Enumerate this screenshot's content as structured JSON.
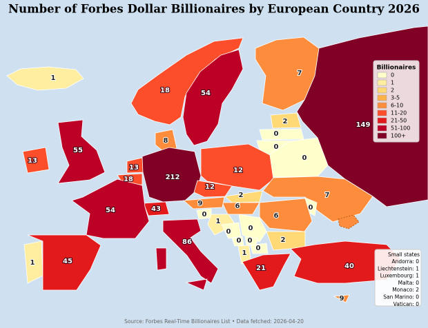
{
  "title": "Number of Forbes Dollar Billionaires by European Country 2026",
  "regions": [
    {
      "value": 1,
      "color": "#ffeda0"
    },
    {
      "value": 18,
      "color": "#fc4e2a"
    },
    {
      "value": 54,
      "color": "#bd0026"
    },
    {
      "value": 7,
      "color": "#fd8d3c"
    },
    {
      "value": 149,
      "color": "#800026"
    },
    {
      "value": 2,
      "color": "#fed976"
    },
    {
      "value": 0,
      "color": "#ffffcc"
    },
    {
      "value": 0,
      "color": "#ffffcc"
    },
    {
      "value": 0,
      "color": "#ffffcc"
    },
    {
      "value": 8,
      "color": "#fd8d3c"
    },
    {
      "value": 55,
      "color": "#bd0026"
    },
    {
      "value": 13,
      "color": "#fc4e2a"
    },
    {
      "value": 13,
      "color": "#fc4e2a"
    },
    {
      "value": 18,
      "color": "#fc4e2a"
    },
    {
      "value": 212,
      "color": "#800026"
    },
    {
      "value": 12,
      "color": "#fc4e2a"
    },
    {
      "value": 12,
      "color": "#fc4e2a"
    },
    {
      "value": 2,
      "color": "#fed976"
    },
    {
      "value": 7,
      "color": "#fd8d3c"
    },
    {
      "value": 6,
      "color": "#fd8d3c"
    },
    {
      "value": 9,
      "color": "#fd8d3c"
    },
    {
      "value": 43,
      "color": "#e31a1c"
    },
    {
      "value": 0,
      "color": "#ffffcc"
    },
    {
      "value": 6,
      "color": "#fd8d3c"
    },
    {
      "value": 54,
      "color": "#bd0026"
    },
    {
      "value": 0,
      "color": "#ffffcc"
    },
    {
      "value": 1,
      "color": "#ffeda0"
    },
    {
      "value": 0,
      "color": "#ffffcc"
    },
    {
      "value": 0,
      "color": "#ffffcc"
    },
    {
      "value": 0,
      "color": "#ffffcc"
    },
    {
      "value": 0,
      "color": "#ffffcc"
    },
    {
      "value": 0,
      "color": "#ffffcc"
    },
    {
      "value": 1,
      "color": "#ffeda0"
    },
    {
      "value": 2,
      "color": "#fed976"
    },
    {
      "value": 86,
      "color": "#bd0026"
    },
    {
      "value": 1,
      "color": "#ffeda0"
    },
    {
      "value": 45,
      "color": "#e31a1c"
    },
    {
      "value": 21,
      "color": "#e31a1c"
    },
    {
      "value": 40,
      "color": "#e31a1c"
    },
    {
      "value": 9,
      "color": "#fd8d3c"
    }
  ],
  "legend": {
    "title": "Billionaires",
    "items": [
      {
        "label": "0",
        "color": "#ffffcc"
      },
      {
        "label": "1",
        "color": "#ffeda0"
      },
      {
        "label": "2",
        "color": "#fed976"
      },
      {
        "label": "3-5",
        "color": "#feb24c"
      },
      {
        "label": "6-10",
        "color": "#fd8d3c"
      },
      {
        "label": "11-20",
        "color": "#fc4e2a"
      },
      {
        "label": "21-50",
        "color": "#e31a1c"
      },
      {
        "label": "51-100",
        "color": "#bd0026"
      },
      {
        "label": "100+",
        "color": "#800026"
      }
    ]
  },
  "small_states": {
    "title": "Small states",
    "items": [
      "Andorra: 0",
      "Liechtenstein: 1",
      "Luxembourg: 1",
      "Malta: 0",
      "Monaco: 2",
      "San Marino: 0",
      "Vatican: 0"
    ]
  },
  "source": "Source: Forbes Real-Time Billionaires List • Data fetched: 2026-04-20"
}
